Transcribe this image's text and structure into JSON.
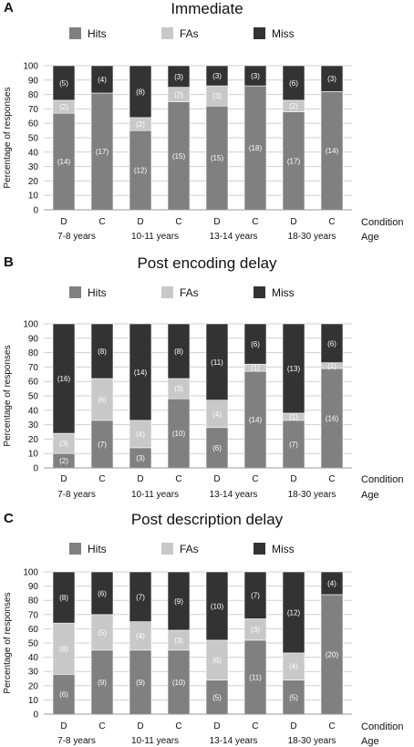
{
  "chart_data": [
    {
      "type": "bar",
      "panel_label": "A",
      "title": "Immediate",
      "ylabel": "Percentage of responses",
      "ylim": [
        0,
        100
      ],
      "yticks": [
        0,
        10,
        20,
        30,
        40,
        50,
        60,
        70,
        80,
        90,
        100
      ],
      "categories": [
        "D",
        "C",
        "D",
        "C",
        "D",
        "C",
        "D",
        "C"
      ],
      "groups": [
        "7-8 years",
        "10-11 years",
        "13-14 years",
        "18-30 years"
      ],
      "x_caption": "Condition",
      "group_caption": "Age",
      "legend_position": "top",
      "series": [
        {
          "name": "Hits",
          "color": "#808080",
          "values": [
            67,
            81,
            55,
            75,
            72,
            86,
            68,
            82
          ],
          "labels": [
            "(14)",
            "(17)",
            "(12)",
            "(15)",
            "(15)",
            "(18)",
            "(17)",
            "(14)"
          ]
        },
        {
          "name": "FAs",
          "color": "#c8c8c8",
          "values": [
            9,
            0,
            9,
            10,
            14,
            0,
            8,
            0
          ],
          "labels": [
            "(2)",
            "",
            "(2)",
            "(2)",
            "(3)",
            "",
            "(2)",
            ""
          ]
        },
        {
          "name": "Miss",
          "color": "#333333",
          "values": [
            24,
            19,
            36,
            15,
            14,
            14,
            24,
            18
          ],
          "labels": [
            "(5)",
            "(4)",
            "(8)",
            "(3)",
            "(3)",
            "(3)",
            "(6)",
            "(3)"
          ]
        }
      ]
    },
    {
      "type": "bar",
      "panel_label": "B",
      "title": "Post encoding delay",
      "ylabel": "Percentage of responses",
      "ylim": [
        0,
        100
      ],
      "yticks": [
        0,
        10,
        20,
        30,
        40,
        50,
        60,
        70,
        80,
        90,
        100
      ],
      "categories": [
        "D",
        "C",
        "D",
        "C",
        "D",
        "C",
        "D",
        "C"
      ],
      "groups": [
        "7-8 years",
        "10-11 years",
        "13-14 years",
        "18-30 years"
      ],
      "x_caption": "Condition",
      "group_caption": "Age",
      "legend_position": "top",
      "series": [
        {
          "name": "Hits",
          "color": "#808080",
          "values": [
            10,
            33,
            14,
            48,
            28,
            67,
            33,
            69
          ],
          "labels": [
            "(2)",
            "(7)",
            "(3)",
            "(10)",
            "(6)",
            "(14)",
            "(7)",
            "(16)"
          ]
        },
        {
          "name": "FAs",
          "color": "#c8c8c8",
          "values": [
            14,
            29,
            19,
            14,
            19,
            5,
            5,
            4
          ],
          "labels": [
            "(3)",
            "(6)",
            "(4)",
            "(3)",
            "(4)",
            "(1)",
            "(1)",
            "(1)"
          ]
        },
        {
          "name": "Miss",
          "color": "#333333",
          "values": [
            76,
            38,
            67,
            38,
            53,
            28,
            62,
            27
          ],
          "labels": [
            "(16)",
            "(8)",
            "(14)",
            "(8)",
            "(11)",
            "(6)",
            "(13)",
            "(6)"
          ]
        }
      ]
    },
    {
      "type": "bar",
      "panel_label": "C",
      "title": "Post description delay",
      "ylabel": "Percentage of responses",
      "ylim": [
        0,
        100
      ],
      "yticks": [
        0,
        10,
        20,
        30,
        40,
        50,
        60,
        70,
        80,
        90,
        100
      ],
      "categories": [
        "D",
        "C",
        "D",
        "C",
        "D",
        "C",
        "D",
        "C"
      ],
      "groups": [
        "7-8 years",
        "10-11 years",
        "13-14 years",
        "18-30 years"
      ],
      "x_caption": "Condition",
      "group_caption": "Age",
      "legend_position": "top",
      "series": [
        {
          "name": "Hits",
          "color": "#808080",
          "values": [
            28,
            45,
            45,
            45,
            24,
            52,
            24,
            84
          ],
          "labels": [
            "(6)",
            "(9)",
            "(9)",
            "(10)",
            "(5)",
            "(11)",
            "(5)",
            "(20)"
          ]
        },
        {
          "name": "FAs",
          "color": "#c8c8c8",
          "values": [
            36,
            25,
            20,
            14,
            28,
            15,
            19,
            0
          ],
          "labels": [
            "(8)",
            "(5)",
            "(4)",
            "(3)",
            "(6)",
            "(3)",
            "(4)",
            ""
          ]
        },
        {
          "name": "Miss",
          "color": "#333333",
          "values": [
            36,
            30,
            35,
            41,
            48,
            33,
            57,
            16
          ],
          "labels": [
            "(8)",
            "(6)",
            "(7)",
            "(9)",
            "(10)",
            "(7)",
            "(12)",
            "(4)"
          ]
        }
      ]
    }
  ]
}
